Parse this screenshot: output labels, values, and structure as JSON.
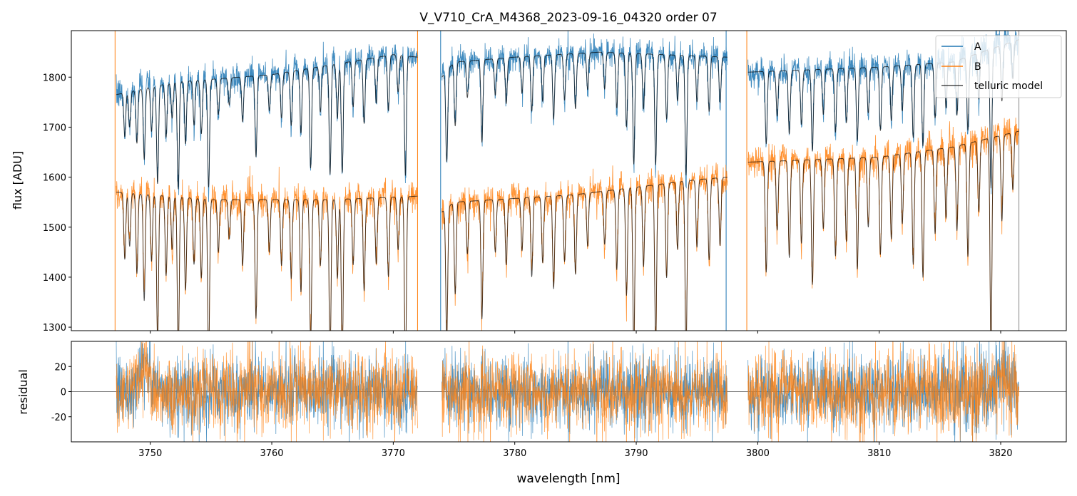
{
  "chart_data": [
    {
      "type": "line",
      "title": "V_V710_CrA_M4368_2023-09-16_04320  order 07",
      "xlabel": "",
      "ylabel": "flux [ADU]",
      "xlim": [
        3743.5,
        3825.4
      ],
      "ylim": [
        1293,
        1893
      ],
      "yticks": [
        1300,
        1400,
        1500,
        1600,
        1700,
        1800
      ],
      "legend": {
        "placement": "top-right",
        "entries": [
          "A",
          "B",
          "telluric model"
        ]
      },
      "colors": {
        "A": "#1f77b4",
        "B": "#ff7f0e",
        "model": "#000000"
      },
      "segments": [
        [
          3747.2,
          3772.0
        ],
        [
          3774.0,
          3797.5
        ],
        [
          3799.2,
          3821.5
        ]
      ],
      "edge_lines": [
        {
          "x": 3747.1,
          "series": "B"
        },
        {
          "x": 3772.0,
          "series": "B"
        },
        {
          "x": 3773.9,
          "series": "A"
        },
        {
          "x": 3797.4,
          "series": "A"
        },
        {
          "x": 3799.1,
          "series": "B"
        },
        {
          "x": 3821.5,
          "series": "model"
        }
      ],
      "continuum": {
        "A": [
          [
            3747.2,
            1765
          ],
          [
            3752,
            1790
          ],
          [
            3760,
            1805
          ],
          [
            3765,
            1825
          ],
          [
            3770,
            1845
          ],
          [
            3772,
            1840
          ],
          [
            3774,
            1800
          ],
          [
            3775,
            1830
          ],
          [
            3780,
            1840
          ],
          [
            3787,
            1850
          ],
          [
            3797.5,
            1840
          ],
          [
            3799.2,
            1810
          ],
          [
            3810,
            1820
          ],
          [
            3816,
            1830
          ],
          [
            3821.5,
            1875
          ]
        ],
        "B": [
          [
            3747.2,
            1570
          ],
          [
            3755,
            1555
          ],
          [
            3765,
            1555
          ],
          [
            3772,
            1562
          ],
          [
            3774,
            1530
          ],
          [
            3775,
            1550
          ],
          [
            3785,
            1565
          ],
          [
            3795,
            1595
          ],
          [
            3797.5,
            1600
          ],
          [
            3799.2,
            1630
          ],
          [
            3810,
            1640
          ],
          [
            3816,
            1660
          ],
          [
            3821.5,
            1692
          ]
        ]
      },
      "line_depth_scale": {
        "A": 1.0,
        "B": 1.7
      },
      "line_width_nm": 0.08,
      "noise_sigma": {
        "A": 11,
        "B": 12
      },
      "telluric_lines": [
        [
          3747.9,
          0.05
        ],
        [
          3748.3,
          0.04
        ],
        [
          3748.9,
          0.06
        ],
        [
          3749.5,
          0.08
        ],
        [
          3750.1,
          0.05
        ],
        [
          3750.6,
          0.11
        ],
        [
          3751.3,
          0.06
        ],
        [
          3751.8,
          0.04
        ],
        [
          3752.3,
          0.12
        ],
        [
          3752.9,
          0.07
        ],
        [
          3753.6,
          0.05
        ],
        [
          3754.2,
          0.06
        ],
        [
          3754.8,
          0.12
        ],
        [
          3755.6,
          0.04
        ],
        [
          3756.5,
          0.03
        ],
        [
          3757.6,
          0.05
        ],
        [
          3758.7,
          0.09
        ],
        [
          3759.8,
          0.04
        ],
        [
          3760.8,
          0.05
        ],
        [
          3761.6,
          0.06
        ],
        [
          3762.4,
          0.07
        ],
        [
          3763.2,
          0.11
        ],
        [
          3764.0,
          0.05
        ],
        [
          3764.8,
          0.12
        ],
        [
          3765.4,
          0.06
        ],
        [
          3765.8,
          0.12
        ],
        [
          3766.7,
          0.05
        ],
        [
          3767.6,
          0.07
        ],
        [
          3768.6,
          0.05
        ],
        [
          3769.6,
          0.06
        ],
        [
          3770.4,
          0.04
        ],
        [
          3771.0,
          0.13
        ],
        [
          3774.4,
          0.1
        ],
        [
          3775.1,
          0.07
        ],
        [
          3776.1,
          0.04
        ],
        [
          3777.3,
          0.09
        ],
        [
          3778.4,
          0.04
        ],
        [
          3779.3,
          0.05
        ],
        [
          3780.6,
          0.04
        ],
        [
          3781.4,
          0.06
        ],
        [
          3782.3,
          0.05
        ],
        [
          3783.2,
          0.07
        ],
        [
          3784.1,
          0.05
        ],
        [
          3785.0,
          0.06
        ],
        [
          3786.0,
          0.04
        ],
        [
          3787.4,
          0.04
        ],
        [
          3788.4,
          0.06
        ],
        [
          3789.2,
          0.08
        ],
        [
          3789.8,
          0.12
        ],
        [
          3790.6,
          0.06
        ],
        [
          3791.6,
          0.12
        ],
        [
          3792.5,
          0.07
        ],
        [
          3793.4,
          0.05
        ],
        [
          3794.1,
          0.13
        ],
        [
          3795.0,
          0.05
        ],
        [
          3796.0,
          0.06
        ],
        [
          3796.9,
          0.05
        ],
        [
          3800.7,
          0.08
        ],
        [
          3801.6,
          0.05
        ],
        [
          3802.6,
          0.07
        ],
        [
          3803.6,
          0.06
        ],
        [
          3804.5,
          0.09
        ],
        [
          3805.4,
          0.05
        ],
        [
          3806.4,
          0.07
        ],
        [
          3807.3,
          0.06
        ],
        [
          3808.2,
          0.08
        ],
        [
          3809.1,
          0.05
        ],
        [
          3810.1,
          0.07
        ],
        [
          3811.0,
          0.06
        ],
        [
          3811.9,
          0.05
        ],
        [
          3812.8,
          0.08
        ],
        [
          3813.6,
          0.09
        ],
        [
          3814.6,
          0.06
        ],
        [
          3815.5,
          0.05
        ],
        [
          3816.4,
          0.06
        ],
        [
          3817.3,
          0.08
        ],
        [
          3818.2,
          0.05
        ],
        [
          3819.2,
          0.15
        ],
        [
          3820.1,
          0.06
        ],
        [
          3821.0,
          0.04
        ]
      ]
    },
    {
      "type": "line",
      "xlabel": "wavelength [nm]",
      "ylabel": "residual",
      "xlim": [
        3743.5,
        3825.4
      ],
      "ylim": [
        -40,
        40
      ],
      "xticks": [
        3750,
        3760,
        3770,
        3780,
        3790,
        3800,
        3810,
        3820
      ],
      "yticks": [
        -20,
        0,
        20
      ],
      "zero_line": 0,
      "edge_excess": [
        [
          3749.5,
          22,
          "both"
        ],
        [
          3820,
          15,
          "both"
        ]
      ]
    }
  ]
}
